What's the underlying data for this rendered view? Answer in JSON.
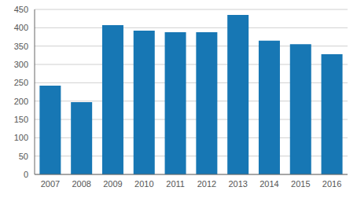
{
  "chart_data": {
    "type": "bar",
    "categories": [
      "2007",
      "2008",
      "2009",
      "2010",
      "2011",
      "2012",
      "2013",
      "2014",
      "2015",
      "2016"
    ],
    "values": [
      242,
      197,
      407,
      392,
      388,
      388,
      435,
      365,
      355,
      328
    ],
    "color": "#1777b4",
    "ylim": [
      0,
      450
    ],
    "yticks": [
      0,
      50,
      100,
      150,
      200,
      250,
      300,
      350,
      400,
      450
    ],
    "grid": true
  }
}
